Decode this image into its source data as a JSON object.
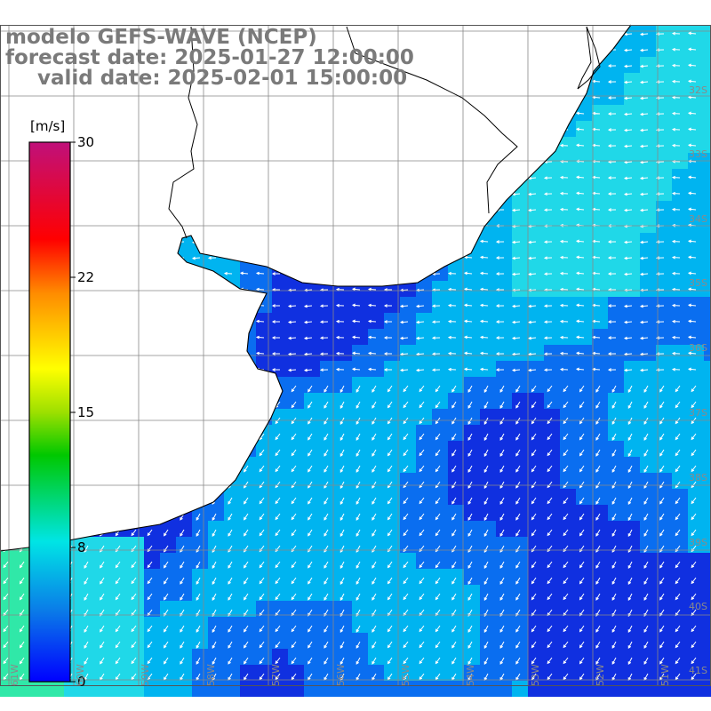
{
  "title": {
    "line1": "modelo GEFS-WAVE (NCEP)",
    "line2": "forecast date: 2025-01-27 12:00:00",
    "line3": "valid date: 2025-02-01 15:00:00"
  },
  "colorbar": {
    "unit": "[m/s]",
    "ticks": [
      "30",
      "22",
      "15",
      "8",
      "0"
    ],
    "colors": [
      "#c0107a",
      "#ff0000",
      "#ff8c00",
      "#ffff00",
      "#00c800",
      "#00e5e5",
      "#0a7ae8",
      "#0000ff"
    ]
  },
  "lat_labels": [
    "32S",
    "33S",
    "34S",
    "35S",
    "36S",
    "37S",
    "38S",
    "39S",
    "40S",
    "41S"
  ],
  "lon_labels": [
    "61W",
    "60W",
    "59W",
    "58W",
    "57W",
    "56W",
    "55W",
    "54W",
    "53W",
    "52W",
    "51W"
  ],
  "colors": {
    "land": "#ffffff",
    "grid": "#888888",
    "coast": "#000000",
    "sea_dark": "#1030e0",
    "sea_mid": "#0a6ef0",
    "sea_light": "#00b4f0",
    "sea_cyan": "#20d8e8",
    "sea_green": "#30e8a8"
  }
}
